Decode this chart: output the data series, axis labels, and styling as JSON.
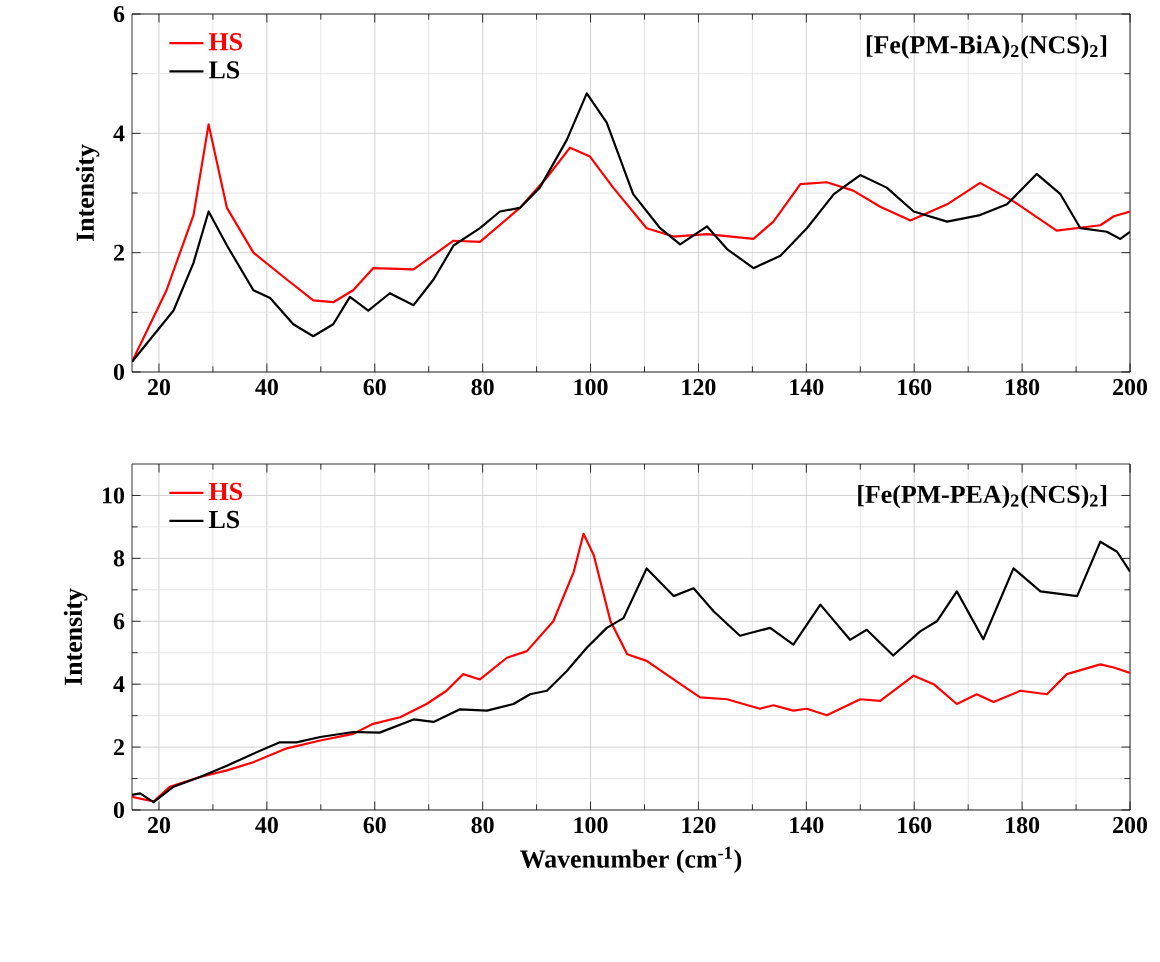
{
  "chart_data": [
    {
      "type": "line",
      "ylabel": "Intensity",
      "annotations": [
        "[Fe(PM-BiA)$_{2}$(NCS)$_{2}$]"
      ],
      "xlim": [
        15,
        200
      ],
      "ylim": [
        0,
        6
      ],
      "xticks": [
        20,
        40,
        60,
        80,
        100,
        120,
        140,
        160,
        180,
        200
      ],
      "yticks": [
        0,
        2,
        4,
        6
      ],
      "grid": true,
      "legend": "top left",
      "line_style": "solid",
      "marker": "none",
      "series": [
        {
          "name": "HS",
          "color": "#ff0000",
          "x": [
            15,
            21.4,
            26.4,
            29.2,
            32.6,
            37.5,
            43.7,
            48.6,
            52.3,
            56.0,
            59.7,
            67.2,
            74.6,
            79.5,
            86.9,
            91.9,
            96.2,
            99.9,
            104.2,
            110.4,
            115.4,
            121.6,
            130.2,
            133.9,
            138.9,
            143.8,
            148.7,
            153.7,
            159.3,
            166.1,
            172.2,
            178.4,
            186.4,
            194.5,
            197.0,
            200
          ],
          "values": [
            0.17,
            1.37,
            2.63,
            4.15,
            2.75,
            2.0,
            1.55,
            1.2,
            1.17,
            1.37,
            1.74,
            1.72,
            2.2,
            2.18,
            2.75,
            3.26,
            3.76,
            3.61,
            3.09,
            2.41,
            2.27,
            2.31,
            2.23,
            2.52,
            3.15,
            3.18,
            3.04,
            2.77,
            2.54,
            2.81,
            3.17,
            2.86,
            2.37,
            2.46,
            2.61,
            2.69
          ]
        },
        {
          "name": "LS",
          "color": "#000000",
          "x": [
            15,
            22.7,
            26.4,
            29.2,
            32.6,
            37.5,
            40.6,
            44.9,
            48.6,
            52.3,
            55.4,
            58.8,
            62.8,
            67.2,
            70.9,
            74.6,
            79.5,
            83.2,
            86.9,
            90.6,
            95.6,
            99.3,
            103.0,
            107.9,
            112.9,
            116.6,
            121.6,
            125.3,
            130.2,
            135.2,
            140.1,
            145.1,
            150.0,
            154.9,
            159.9,
            166.1,
            172.2,
            177.2,
            182.7,
            187.1,
            190.8,
            195.7,
            198.2,
            200
          ],
          "values": [
            0.17,
            1.03,
            1.83,
            2.69,
            2.12,
            1.37,
            1.24,
            0.8,
            0.6,
            0.8,
            1.26,
            1.03,
            1.32,
            1.12,
            1.55,
            2.12,
            2.41,
            2.69,
            2.75,
            3.09,
            3.89,
            4.67,
            4.18,
            2.98,
            2.41,
            2.14,
            2.44,
            2.06,
            1.74,
            1.95,
            2.41,
            2.98,
            3.3,
            3.09,
            2.69,
            2.52,
            2.63,
            2.81,
            3.32,
            2.98,
            2.41,
            2.35,
            2.23,
            2.35
          ]
        }
      ]
    },
    {
      "type": "line",
      "xlabel": "Wavenumber (cm$^{-1}$)",
      "ylabel": "Intensity",
      "annotations": [
        "[Fe(PM-PEA)$_{2}$(NCS)$_{2}$]"
      ],
      "xlim": [
        15,
        200
      ],
      "ylim": [
        0,
        11
      ],
      "xticks": [
        20,
        40,
        60,
        80,
        100,
        120,
        140,
        160,
        180,
        200
      ],
      "yticks": [
        0,
        2,
        4,
        6,
        8,
        10
      ],
      "grid": true,
      "legend": "top left",
      "line_style": "solid",
      "marker": "none",
      "series": [
        {
          "name": "HS",
          "color": "#ff0000",
          "x": [
            15,
            19,
            22,
            27.6,
            32.6,
            37.5,
            43.7,
            49.9,
            56.0,
            59.7,
            64.7,
            69.6,
            73.3,
            76.4,
            79.5,
            84.5,
            88.2,
            93.1,
            96.9,
            98.7,
            100.6,
            103.7,
            106.8,
            110.4,
            115.4,
            120.3,
            125.3,
            131.4,
            133.9,
            137.6,
            140.1,
            143.8,
            150.0,
            153.7,
            159.9,
            163.6,
            167.9,
            171.6,
            174.7,
            179.7,
            184.6,
            188.3,
            194.5,
            197.0,
            200
          ],
          "values": [
            0.42,
            0.27,
            0.74,
            1.05,
            1.26,
            1.52,
            1.96,
            2.21,
            2.42,
            2.74,
            2.95,
            3.37,
            3.79,
            4.32,
            4.15,
            4.84,
            5.05,
            6.0,
            7.58,
            8.78,
            8.1,
            6.0,
            4.95,
            4.74,
            4.15,
            3.58,
            3.52,
            3.22,
            3.33,
            3.16,
            3.22,
            3.01,
            3.52,
            3.47,
            4.27,
            4.0,
            3.37,
            3.68,
            3.43,
            3.79,
            3.68,
            4.32,
            4.63,
            4.53,
            4.36
          ]
        },
        {
          "name": "LS",
          "color": "#000000",
          "x": [
            15,
            16.5,
            19,
            22.7,
            27.6,
            32.6,
            37.5,
            42.4,
            45.5,
            49.9,
            56.0,
            60.9,
            67.2,
            70.9,
            75.8,
            80.8,
            85.7,
            88.8,
            91.9,
            95.6,
            99.3,
            103.0,
            106.1,
            110.4,
            115.4,
            119.1,
            122.8,
            127.7,
            133.3,
            137.6,
            142.6,
            148.1,
            151.2,
            156.1,
            161.1,
            164.2,
            167.9,
            172.8,
            178.4,
            183.4,
            190.2,
            194.5,
            197.6,
            200
          ],
          "values": [
            0.48,
            0.53,
            0.25,
            0.74,
            1.05,
            1.41,
            1.79,
            2.15,
            2.15,
            2.32,
            2.48,
            2.46,
            2.88,
            2.8,
            3.2,
            3.16,
            3.37,
            3.68,
            3.79,
            4.42,
            5.16,
            5.79,
            6.1,
            7.68,
            6.8,
            7.05,
            6.32,
            5.54,
            5.79,
            5.26,
            6.53,
            5.41,
            5.73,
            4.91,
            5.68,
            6.0,
            6.95,
            5.43,
            7.68,
            6.95,
            6.8,
            8.53,
            8.21,
            7.58
          ]
        }
      ]
    }
  ]
}
